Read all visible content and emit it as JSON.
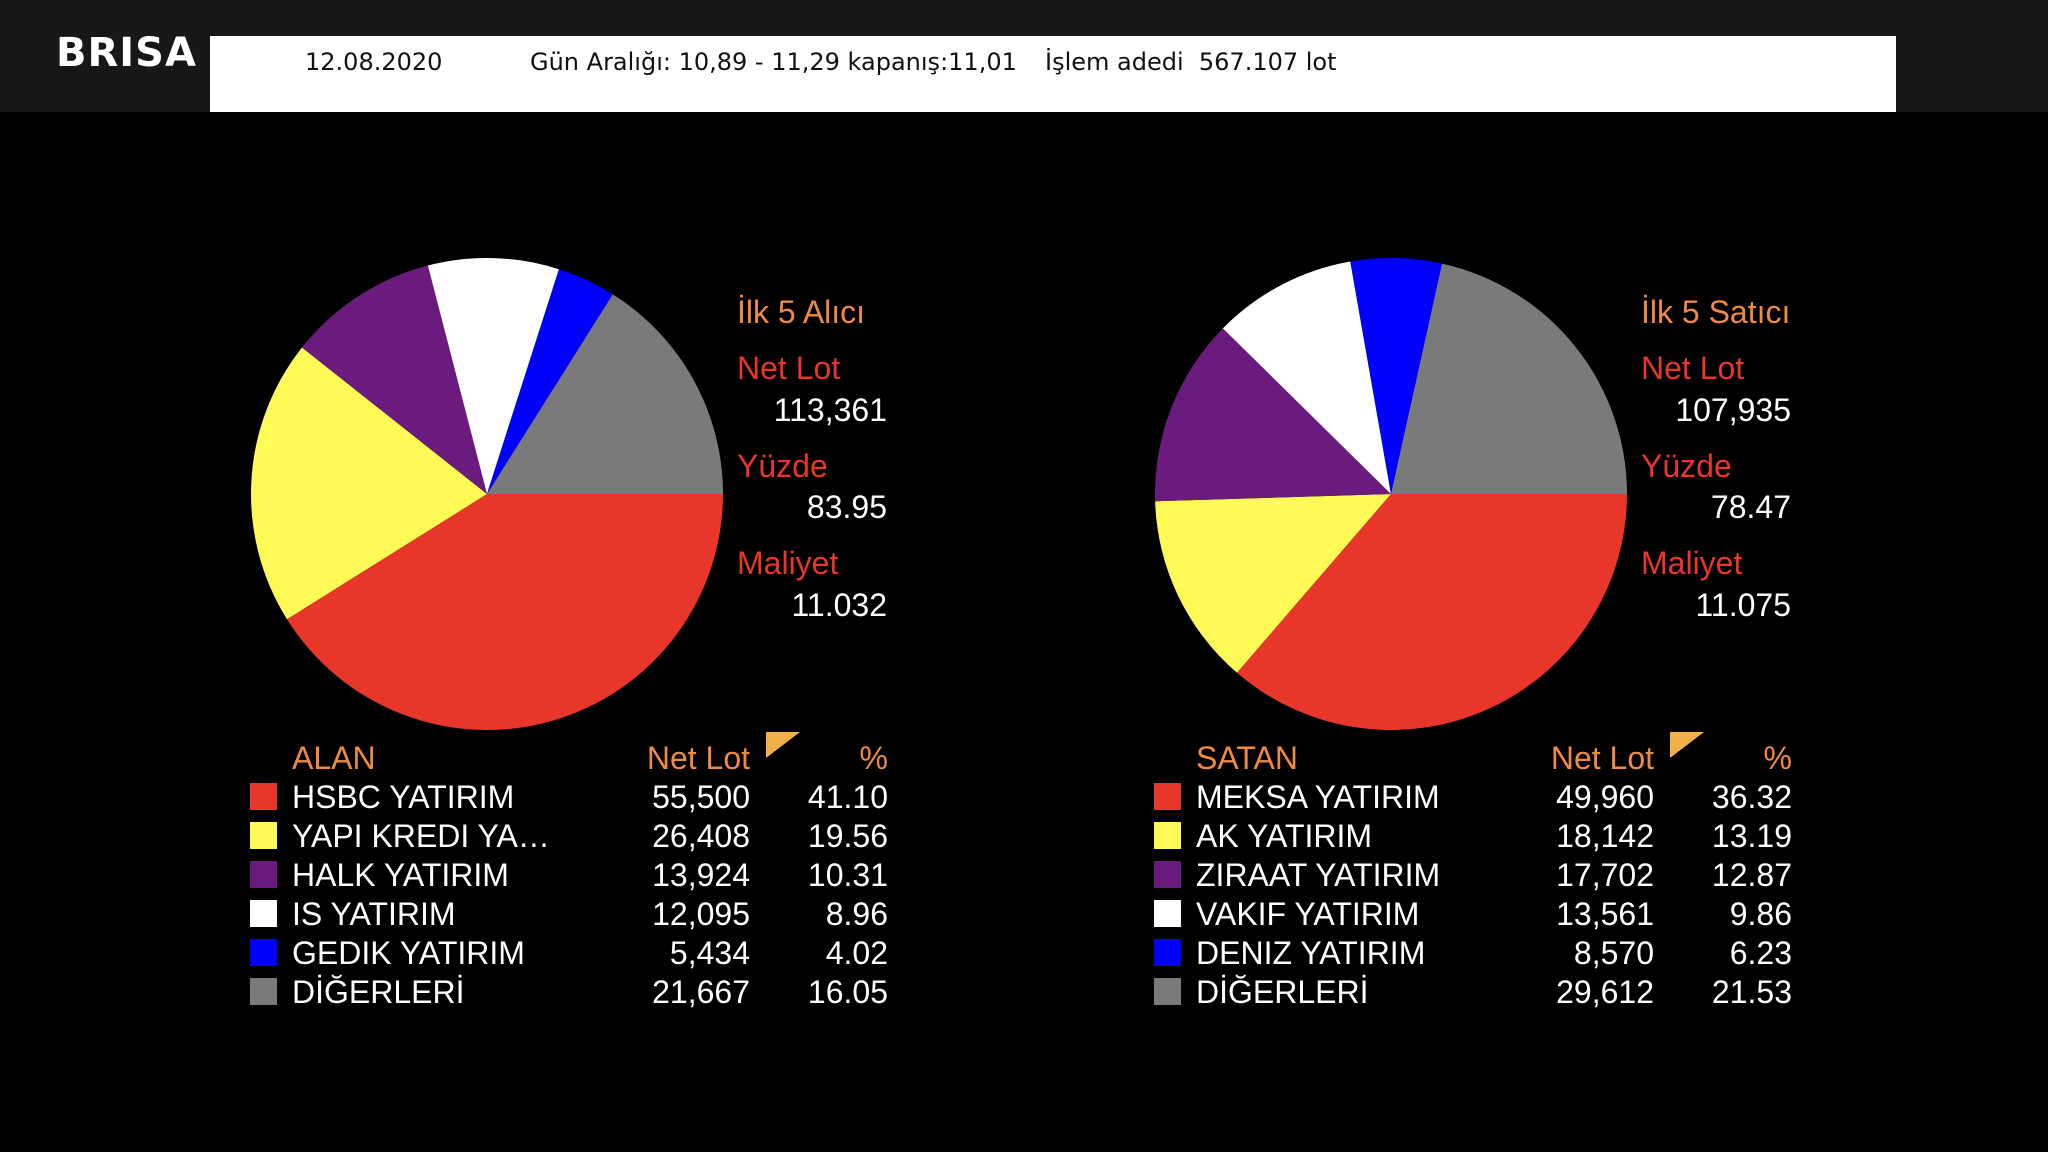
{
  "header": {
    "ticker": "BRISA",
    "date": "12.08.2020",
    "range": "Gün Aralığı: 10,89 - 11,29 kapanış:11,01",
    "volume": "İşlem adedi  567.107 lot"
  },
  "colors": {
    "background": "#000000",
    "slice_colors": [
      "#e8362a",
      "#fffa55",
      "#6b1a7d",
      "#ffffff",
      "#0000ff",
      "#7a7a7a"
    ],
    "header_label": "#f08a43",
    "metric_label": "#e8362a"
  },
  "buyers": {
    "title": "İlk 5 Alıcı",
    "net_lot_label": "Net Lot",
    "net_lot": "113,361",
    "pct_label": "Yüzde",
    "pct": "83.95",
    "cost_label": "Maliyet",
    "cost": "11.032",
    "col_name": "ALAN",
    "col_lot": "Net Lot",
    "col_pct": "%",
    "rows": [
      {
        "name": "HSBC YATIRIM",
        "lot": "55,500",
        "pct": "41.10"
      },
      {
        "name": "YAPI KREDI YA…",
        "lot": "26,408",
        "pct": "19.56"
      },
      {
        "name": "HALK YATIRIM",
        "lot": "13,924",
        "pct": "10.31"
      },
      {
        "name": "IS YATIRIM",
        "lot": "12,095",
        "pct": "8.96"
      },
      {
        "name": "GEDIK YATIRIM",
        "lot": "5,434",
        "pct": "4.02"
      },
      {
        "name": "DİĞERLERİ",
        "lot": "21,667",
        "pct": "16.05"
      }
    ]
  },
  "sellers": {
    "title": "İlk 5 Satıcı",
    "net_lot_label": "Net Lot",
    "net_lot": "107,935",
    "pct_label": "Yüzde",
    "pct": "78.47",
    "cost_label": "Maliyet",
    "cost": "11.075",
    "col_name": "SATAN",
    "col_lot": "Net Lot",
    "col_pct": "%",
    "rows": [
      {
        "name": "MEKSA YATIRIM",
        "lot": "49,960",
        "pct": "36.32"
      },
      {
        "name": "AK YATIRIM",
        "lot": "18,142",
        "pct": "13.19"
      },
      {
        "name": "ZIRAAT YATIRIM",
        "lot": "17,702",
        "pct": "12.87"
      },
      {
        "name": "VAKIF YATIRIM",
        "lot": "13,561",
        "pct": "9.86"
      },
      {
        "name": "DENIZ YATIRIM",
        "lot": "8,570",
        "pct": "6.23"
      },
      {
        "name": "DİĞERLERİ",
        "lot": "29,612",
        "pct": "21.53"
      }
    ]
  },
  "chart_data": [
    {
      "type": "pie",
      "title": "İlk 5 Alıcı",
      "categories": [
        "HSBC YATIRIM",
        "YAPI KREDI YA…",
        "HALK YATIRIM",
        "IS YATIRIM",
        "GEDIK YATIRIM",
        "DİĞERLERİ"
      ],
      "values": [
        41.1,
        19.56,
        10.31,
        8.96,
        4.02,
        16.05
      ],
      "net_lot": [
        55500,
        26408,
        13924,
        12095,
        5434,
        21667
      ],
      "legend_position": "bottom"
    },
    {
      "type": "pie",
      "title": "İlk 5 Satıcı",
      "categories": [
        "MEKSA YATIRIM",
        "AK YATIRIM",
        "ZIRAAT YATIRIM",
        "VAKIF YATIRIM",
        "DENIZ YATIRIM",
        "DİĞERLERİ"
      ],
      "values": [
        36.32,
        13.19,
        12.87,
        9.86,
        6.23,
        21.53
      ],
      "net_lot": [
        49960,
        18142,
        17702,
        13561,
        8570,
        29612
      ],
      "legend_position": "bottom"
    }
  ]
}
